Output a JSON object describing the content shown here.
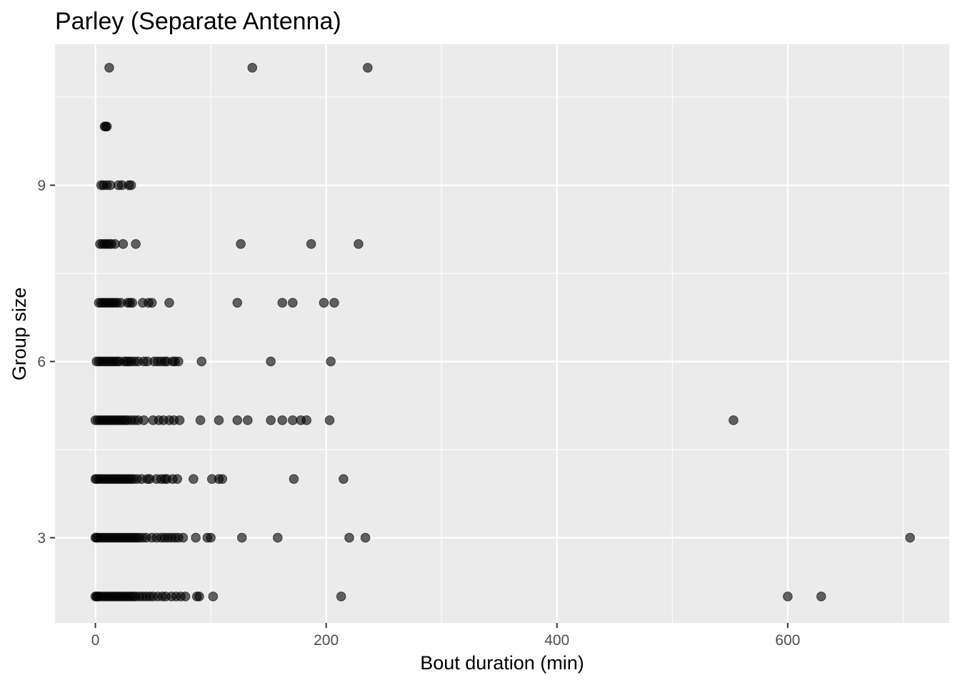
{
  "chart_data": {
    "type": "scatter",
    "title": "Parley (Separate Antenna)",
    "xlabel": "Bout duration (min)",
    "ylabel": "Group size",
    "xlim": [
      -35,
      740
    ],
    "ylim": [
      1.55,
      11.4
    ],
    "x_ticks": [
      0,
      200,
      400,
      600
    ],
    "x_tick_labels": [
      "0",
      "200",
      "400",
      "600"
    ],
    "x_minor_ticks": [
      100,
      300,
      500,
      700
    ],
    "y_ticks": [
      3,
      6,
      9
    ],
    "y_tick_labels": [
      "3",
      "6",
      "9"
    ],
    "y_minor_ticks": [
      4.5,
      7.5,
      10.5
    ],
    "grid": true,
    "panel_color": "#ebebeb",
    "grid_color": "#ffffff",
    "point_color": "#000000",
    "point_alpha": 0.6,
    "series": [
      {
        "points": [
          [
            12,
            11
          ],
          [
            136,
            11
          ],
          [
            236,
            11
          ],
          [
            8,
            10
          ],
          [
            9,
            10
          ],
          [
            10,
            10
          ],
          [
            5,
            9
          ],
          [
            7,
            9
          ],
          [
            10,
            9
          ],
          [
            13,
            9
          ],
          [
            20,
            9
          ],
          [
            23,
            9
          ],
          [
            29,
            9
          ],
          [
            31,
            9
          ],
          [
            4,
            8
          ],
          [
            6,
            8
          ],
          [
            8,
            8
          ],
          [
            10,
            8
          ],
          [
            12,
            8
          ],
          [
            14,
            8
          ],
          [
            17,
            8
          ],
          [
            24,
            8
          ],
          [
            35,
            8
          ],
          [
            126,
            8
          ],
          [
            187,
            8
          ],
          [
            228,
            8
          ],
          [
            3,
            7
          ],
          [
            5,
            7
          ],
          [
            7,
            7
          ],
          [
            9,
            7
          ],
          [
            11,
            7
          ],
          [
            13,
            7
          ],
          [
            15,
            7
          ],
          [
            17,
            7
          ],
          [
            19,
            7
          ],
          [
            22,
            7
          ],
          [
            28,
            7
          ],
          [
            30,
            7
          ],
          [
            32,
            7
          ],
          [
            41,
            7
          ],
          [
            46,
            7
          ],
          [
            49,
            7
          ],
          [
            64,
            7
          ],
          [
            123,
            7
          ],
          [
            162,
            7
          ],
          [
            171,
            7
          ],
          [
            198,
            7
          ],
          [
            207,
            7
          ],
          [
            1,
            6
          ],
          [
            3,
            6
          ],
          [
            5,
            6
          ],
          [
            7,
            6
          ],
          [
            9,
            6
          ],
          [
            11,
            6
          ],
          [
            13,
            6
          ],
          [
            15,
            6
          ],
          [
            17,
            6
          ],
          [
            19,
            6
          ],
          [
            21,
            6
          ],
          [
            25,
            6
          ],
          [
            27,
            6
          ],
          [
            29,
            6
          ],
          [
            31,
            6
          ],
          [
            34,
            6
          ],
          [
            37,
            6
          ],
          [
            42,
            6
          ],
          [
            45,
            6
          ],
          [
            51,
            6
          ],
          [
            54,
            6
          ],
          [
            57,
            6
          ],
          [
            60,
            6
          ],
          [
            62,
            6
          ],
          [
            67,
            6
          ],
          [
            69,
            6
          ],
          [
            72,
            6
          ],
          [
            92,
            6
          ],
          [
            152,
            6
          ],
          [
            204,
            6
          ],
          [
            0,
            5
          ],
          [
            2,
            5
          ],
          [
            4,
            5
          ],
          [
            6,
            5
          ],
          [
            8,
            5
          ],
          [
            10,
            5
          ],
          [
            12,
            5
          ],
          [
            14,
            5
          ],
          [
            16,
            5
          ],
          [
            18,
            5
          ],
          [
            20,
            5
          ],
          [
            22,
            5
          ],
          [
            24,
            5
          ],
          [
            26,
            5
          ],
          [
            28,
            5
          ],
          [
            31,
            5
          ],
          [
            34,
            5
          ],
          [
            37,
            5
          ],
          [
            42,
            5
          ],
          [
            50,
            5
          ],
          [
            55,
            5
          ],
          [
            59,
            5
          ],
          [
            64,
            5
          ],
          [
            68,
            5
          ],
          [
            73,
            5
          ],
          [
            91,
            5
          ],
          [
            107,
            5
          ],
          [
            123,
            5
          ],
          [
            132,
            5
          ],
          [
            152,
            5
          ],
          [
            162,
            5
          ],
          [
            171,
            5
          ],
          [
            178,
            5
          ],
          [
            183,
            5
          ],
          [
            203,
            5
          ],
          [
            553,
            5
          ],
          [
            0,
            4
          ],
          [
            1,
            4
          ],
          [
            3,
            4
          ],
          [
            5,
            4
          ],
          [
            7,
            4
          ],
          [
            9,
            4
          ],
          [
            11,
            4
          ],
          [
            13,
            4
          ],
          [
            15,
            4
          ],
          [
            17,
            4
          ],
          [
            19,
            4
          ],
          [
            21,
            4
          ],
          [
            23,
            4
          ],
          [
            25,
            4
          ],
          [
            27,
            4
          ],
          [
            29,
            4
          ],
          [
            31,
            4
          ],
          [
            33,
            4
          ],
          [
            36,
            4
          ],
          [
            40,
            4
          ],
          [
            45,
            4
          ],
          [
            47,
            4
          ],
          [
            53,
            4
          ],
          [
            57,
            4
          ],
          [
            60,
            4
          ],
          [
            62,
            4
          ],
          [
            67,
            4
          ],
          [
            71,
            4
          ],
          [
            85,
            4
          ],
          [
            101,
            4
          ],
          [
            107,
            4
          ],
          [
            110,
            4
          ],
          [
            172,
            4
          ],
          [
            215,
            4
          ],
          [
            0,
            3
          ],
          [
            1,
            3
          ],
          [
            2,
            3
          ],
          [
            4,
            3
          ],
          [
            6,
            3
          ],
          [
            8,
            3
          ],
          [
            10,
            3
          ],
          [
            12,
            3
          ],
          [
            14,
            3
          ],
          [
            16,
            3
          ],
          [
            18,
            3
          ],
          [
            20,
            3
          ],
          [
            22,
            3
          ],
          [
            24,
            3
          ],
          [
            26,
            3
          ],
          [
            28,
            3
          ],
          [
            30,
            3
          ],
          [
            32,
            3
          ],
          [
            34,
            3
          ],
          [
            36,
            3
          ],
          [
            38,
            3
          ],
          [
            41,
            3
          ],
          [
            44,
            3
          ],
          [
            49,
            3
          ],
          [
            53,
            3
          ],
          [
            57,
            3
          ],
          [
            60,
            3
          ],
          [
            63,
            3
          ],
          [
            66,
            3
          ],
          [
            69,
            3
          ],
          [
            72,
            3
          ],
          [
            76,
            3
          ],
          [
            87,
            3
          ],
          [
            97,
            3
          ],
          [
            100,
            3
          ],
          [
            127,
            3
          ],
          [
            158,
            3
          ],
          [
            220,
            3
          ],
          [
            234,
            3
          ],
          [
            706,
            3
          ],
          [
            0,
            2
          ],
          [
            1,
            2
          ],
          [
            2,
            2
          ],
          [
            3,
            2
          ],
          [
            5,
            2
          ],
          [
            7,
            2
          ],
          [
            9,
            2
          ],
          [
            11,
            2
          ],
          [
            13,
            2
          ],
          [
            15,
            2
          ],
          [
            17,
            2
          ],
          [
            19,
            2
          ],
          [
            21,
            2
          ],
          [
            23,
            2
          ],
          [
            25,
            2
          ],
          [
            27,
            2
          ],
          [
            29,
            2
          ],
          [
            31,
            2
          ],
          [
            33,
            2
          ],
          [
            35,
            2
          ],
          [
            38,
            2
          ],
          [
            41,
            2
          ],
          [
            44,
            2
          ],
          [
            47,
            2
          ],
          [
            50,
            2
          ],
          [
            54,
            2
          ],
          [
            58,
            2
          ],
          [
            61,
            2
          ],
          [
            66,
            2
          ],
          [
            70,
            2
          ],
          [
            74,
            2
          ],
          [
            78,
            2
          ],
          [
            88,
            2
          ],
          [
            90,
            2
          ],
          [
            102,
            2
          ],
          [
            213,
            2
          ],
          [
            600,
            2
          ],
          [
            629,
            2
          ]
        ]
      }
    ]
  }
}
